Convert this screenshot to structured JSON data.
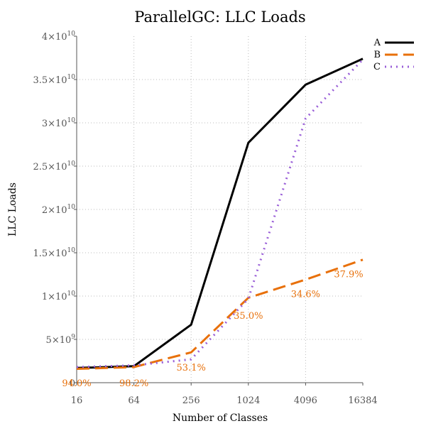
{
  "chart_data": {
    "type": "line",
    "title": "ParallelGC: LLC Loads",
    "xlabel": "Number of Classes",
    "ylabel": "LLC Loads",
    "x": [
      16,
      64,
      256,
      1024,
      4096,
      16384
    ],
    "x_tick_labels": [
      "16",
      "64",
      "256",
      "1024",
      "4096",
      "16384"
    ],
    "x_scale": "log",
    "y_ticks": [
      {
        "value": 0,
        "mant": "0",
        "exp": ""
      },
      {
        "value": 5000000000,
        "mant": "5×10",
        "exp": "9"
      },
      {
        "value": 10000000000,
        "mant": "1×10",
        "exp": "10"
      },
      {
        "value": 15000000000,
        "mant": "1.5×10",
        "exp": "10"
      },
      {
        "value": 20000000000,
        "mant": "2×10",
        "exp": "10"
      },
      {
        "value": 25000000000,
        "mant": "2.5×10",
        "exp": "10"
      },
      {
        "value": 30000000000,
        "mant": "3×10",
        "exp": "10"
      },
      {
        "value": 35000000000,
        "mant": "3.5×10",
        "exp": "10"
      },
      {
        "value": 40000000000,
        "mant": "4×10",
        "exp": "10"
      }
    ],
    "ylim": [
      0,
      40000000000
    ],
    "grid": true,
    "legend_position": "top-right",
    "series": [
      {
        "name": "A",
        "color": "#000000",
        "style": "solid",
        "values": [
          1700000000,
          1900000000,
          6700000000,
          27700000000,
          34400000000,
          37400000000
        ]
      },
      {
        "name": "B",
        "color": "#e8700a",
        "style": "dashed",
        "values": [
          1600000000,
          1800000000,
          3500000000,
          9800000000,
          11900000000,
          14200000000
        ]
      },
      {
        "name": "C",
        "color": "#9a5fd8",
        "style": "dotted",
        "values": [
          1800000000,
          2000000000,
          2700000000,
          9700000000,
          30500000000,
          37300000000
        ]
      }
    ],
    "annotations": [
      {
        "text": "94.0%",
        "x": 16,
        "y": 0,
        "color": "#e8700a"
      },
      {
        "text": "98.2%",
        "x": 64,
        "y": 0,
        "color": "#e8700a"
      },
      {
        "text": "53.1%",
        "x": 256,
        "y": 1800000000,
        "color": "#e8700a"
      },
      {
        "text": "35.0%",
        "x": 1024,
        "y": 7800000000,
        "color": "#e8700a"
      },
      {
        "text": "34.6%",
        "x": 4096,
        "y": 10300000000,
        "color": "#e8700a"
      },
      {
        "text": "37.9%",
        "x": 16384,
        "y": 12600000000,
        "color": "#e8700a"
      }
    ]
  }
}
